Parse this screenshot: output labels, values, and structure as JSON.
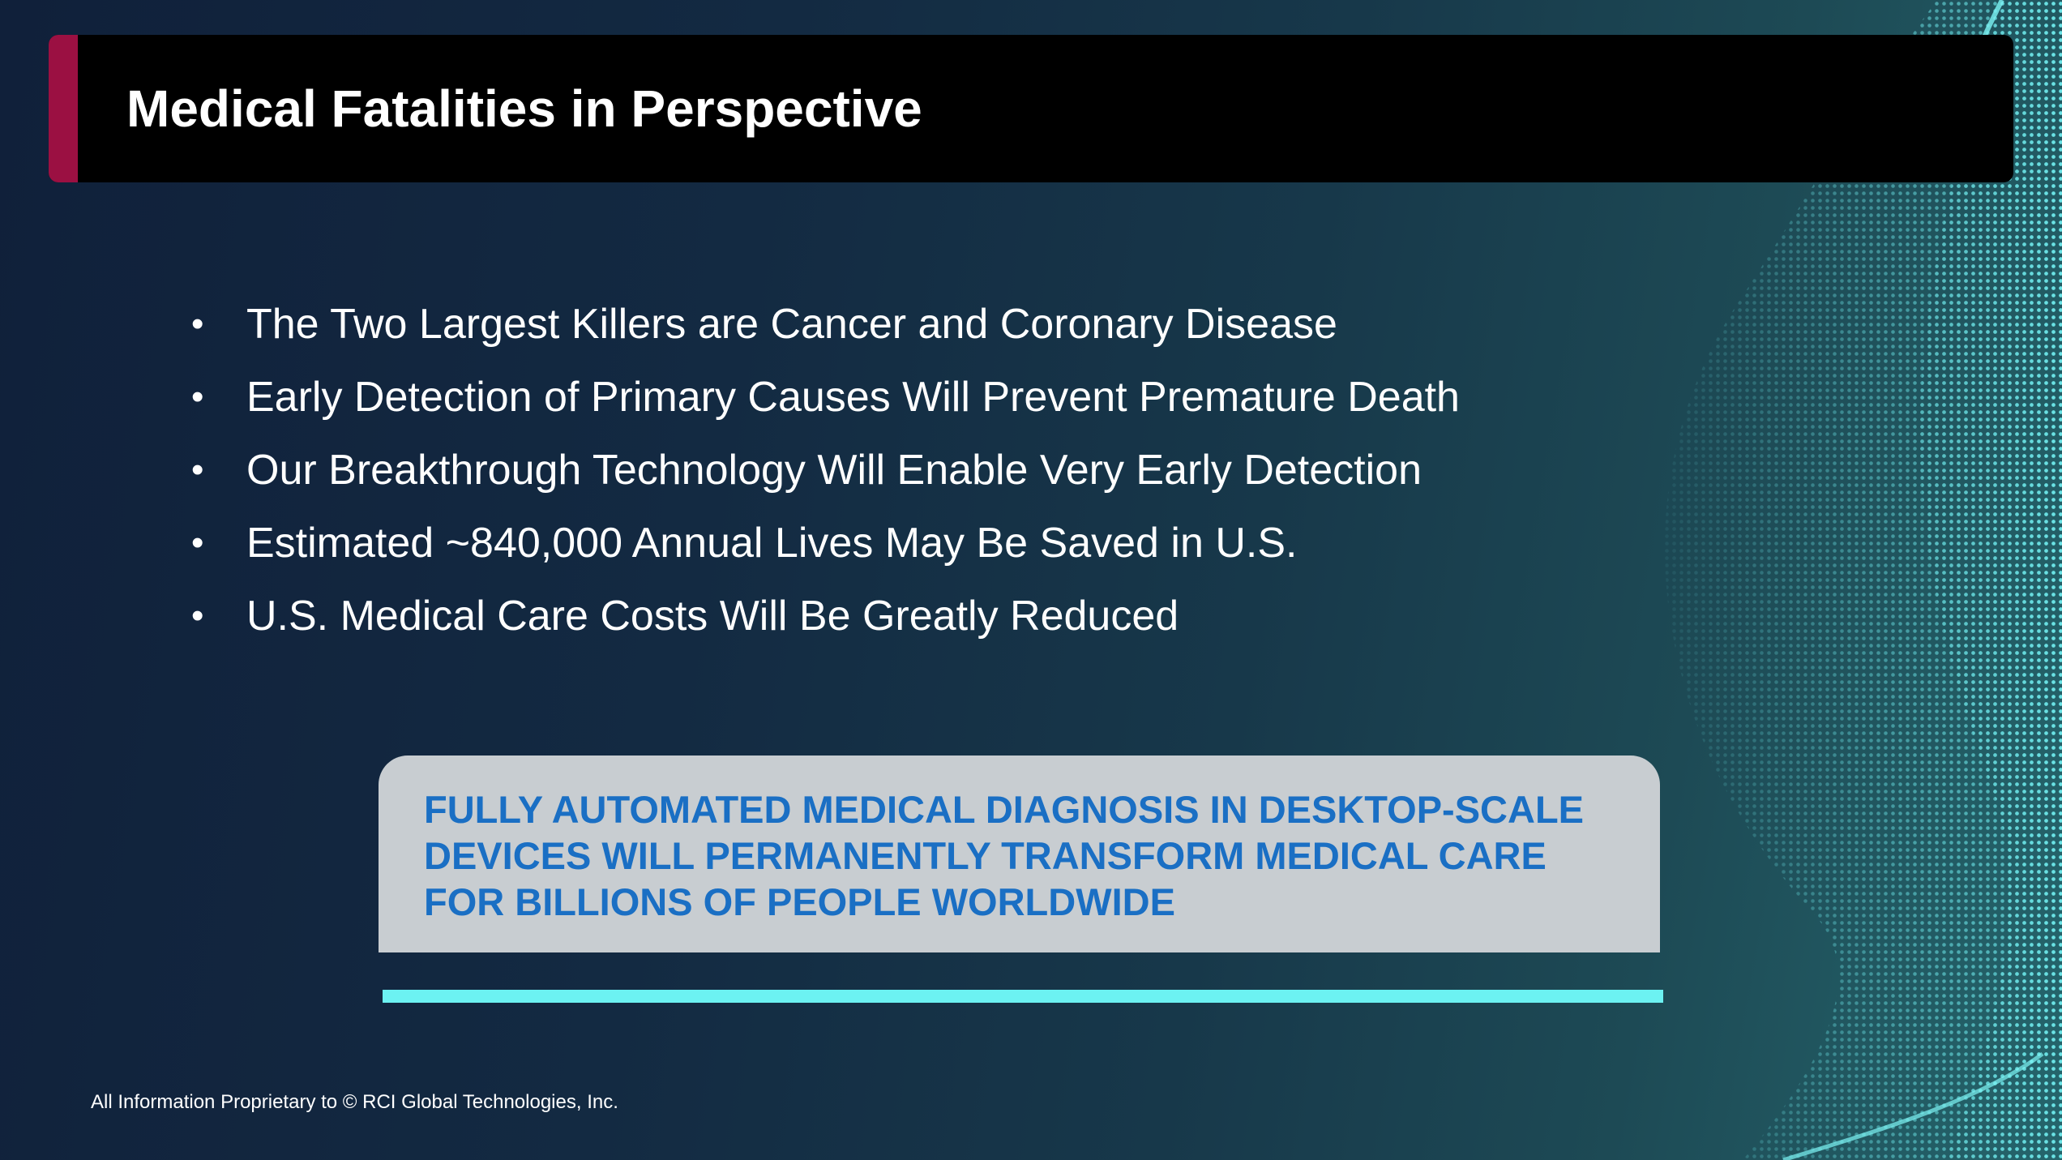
{
  "slide": {
    "title": "Medical Fatalities in Perspective",
    "bullets": [
      "The Two Largest Killers are Cancer and Coronary Disease",
      "Early Detection of Primary Causes Will Prevent Premature Death",
      "Our Breakthrough Technology Will Enable Very Early Detection",
      "Estimated ~840,000 Annual Lives May Be Saved in U.S.",
      "U.S. Medical Care Costs Will Be Greatly Reduced"
    ],
    "bullet_symbol": "•",
    "callout_lines": [
      "FULLY AUTOMATED MEDICAL DIAGNOSIS IN DESKTOP-SCALE",
      "DEVICES WILL PERMANENTLY TRANSFORM MEDICAL CARE",
      "FOR BILLIONS OF PEOPLE WORLDWIDE"
    ],
    "footer": "All Information Proprietary to © RCI Global Technologies, Inc."
  },
  "colors": {
    "title_bar": "#000000",
    "title_accent": "#9b1042",
    "callout_background": "#c8cdd1",
    "callout_text": "#1a6fc4",
    "accent_line": "#6cf2f2"
  }
}
